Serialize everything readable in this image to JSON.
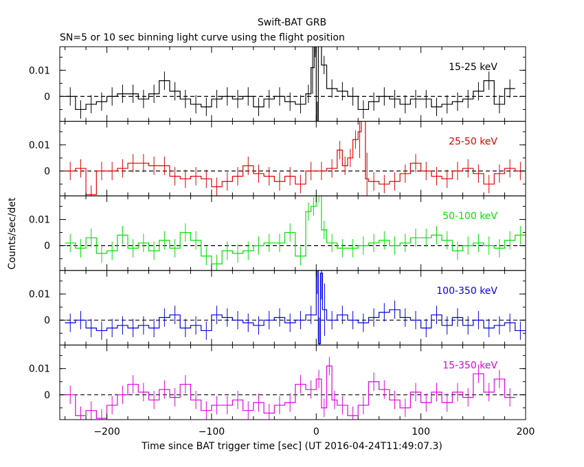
{
  "chart_data": {
    "type": "line",
    "title": "Swift-BAT GRB",
    "subtitle": "SN=5 or 10 sec binning light curve using the flight position",
    "xlabel": "Time since BAT trigger time [sec] (UT 2016-04-24T11:49:07.3)",
    "ylabel": "Counts/sec/det",
    "xlim": [
      -245,
      200
    ],
    "ylim": [
      -0.0095,
      0.019
    ],
    "x_ticks": [
      -200,
      -100,
      0,
      100,
      200
    ],
    "y_ticks": [
      0,
      0.01
    ],
    "y_tick_labels": [
      "0",
      "0.01"
    ],
    "zero_line": "dashed",
    "panels": [
      {
        "name": "15-25 keV",
        "color": "#000000",
        "bins": [
          [
            -240,
            0.0
          ],
          [
            -230,
            -0.005
          ],
          [
            -220,
            -0.003
          ],
          [
            -210,
            -0.002
          ],
          [
            -200,
            0.0
          ],
          [
            -190,
            0.001
          ],
          [
            -180,
            0.001
          ],
          [
            -170,
            -0.001
          ],
          [
            -160,
            0.001
          ],
          [
            -150,
            0.006
          ],
          [
            -140,
            0.002
          ],
          [
            -130,
            -0.001
          ],
          [
            -120,
            -0.003
          ],
          [
            -110,
            -0.004
          ],
          [
            -100,
            -0.001
          ],
          [
            -90,
            0.0
          ],
          [
            -80,
            -0.001
          ],
          [
            -70,
            0.0
          ],
          [
            -60,
            -0.004
          ],
          [
            -50,
            -0.001
          ],
          [
            -40,
            0.0
          ],
          [
            -30,
            -0.002
          ],
          [
            -20,
            -0.003
          ],
          [
            -10,
            0.001
          ],
          [
            -5,
            0.011
          ],
          [
            -2,
            0.025
          ],
          [
            0,
            -0.012
          ],
          [
            2,
            0.03
          ],
          [
            5,
            0.012
          ],
          [
            10,
            0.003
          ],
          [
            20,
            0.002
          ],
          [
            30,
            0.0
          ],
          [
            40,
            -0.005
          ],
          [
            50,
            -0.002
          ],
          [
            60,
            0.0
          ],
          [
            70,
            -0.001
          ],
          [
            80,
            -0.003
          ],
          [
            90,
            -0.001
          ],
          [
            100,
            -0.001
          ],
          [
            110,
            -0.004
          ],
          [
            120,
            -0.003
          ],
          [
            130,
            -0.002
          ],
          [
            140,
            -0.001
          ],
          [
            150,
            0.002
          ],
          [
            160,
            0.006
          ],
          [
            170,
            -0.003
          ],
          [
            180,
            0.003
          ]
        ]
      },
      {
        "name": "25-50 keV",
        "color": "#e00000",
        "bins": [
          [
            -240,
            0.0
          ],
          [
            -230,
            0.001
          ],
          [
            -220,
            -0.009
          ],
          [
            -210,
            0.0
          ],
          [
            -200,
            0.0
          ],
          [
            -190,
            0.001
          ],
          [
            -180,
            0.003
          ],
          [
            -170,
            0.003
          ],
          [
            -160,
            0.002
          ],
          [
            -150,
            0.002
          ],
          [
            -140,
            -0.002
          ],
          [
            -130,
            -0.003
          ],
          [
            -120,
            -0.002
          ],
          [
            -110,
            -0.003
          ],
          [
            -100,
            -0.006
          ],
          [
            -90,
            -0.004
          ],
          [
            -80,
            -0.002
          ],
          [
            -70,
            0.002
          ],
          [
            -60,
            -0.001
          ],
          [
            -50,
            -0.002
          ],
          [
            -40,
            -0.004
          ],
          [
            -30,
            -0.002
          ],
          [
            -20,
            -0.005
          ],
          [
            -10,
            0.0
          ],
          [
            0,
            0.0
          ],
          [
            10,
            0.001
          ],
          [
            20,
            0.008
          ],
          [
            25,
            0.002
          ],
          [
            30,
            0.005
          ],
          [
            35,
            0.012
          ],
          [
            40,
            0.015
          ],
          [
            43,
            0.03
          ],
          [
            47,
            -0.003
          ],
          [
            50,
            -0.004
          ],
          [
            60,
            -0.005
          ],
          [
            70,
            -0.004
          ],
          [
            80,
            -0.001
          ],
          [
            90,
            0.003
          ],
          [
            100,
            0.0
          ],
          [
            110,
            -0.002
          ],
          [
            120,
            -0.003
          ],
          [
            130,
            0.0
          ],
          [
            140,
            0.001
          ],
          [
            150,
            -0.001
          ],
          [
            160,
            -0.005
          ],
          [
            170,
            -0.001
          ],
          [
            180,
            0.001
          ],
          [
            190,
            0.0
          ]
        ]
      },
      {
        "name": "50-100 keV",
        "color": "#00e000",
        "bins": [
          [
            -240,
            0.001
          ],
          [
            -230,
            -0.001
          ],
          [
            -220,
            0.003
          ],
          [
            -210,
            -0.003
          ],
          [
            -200,
            -0.002
          ],
          [
            -190,
            0.004
          ],
          [
            -180,
            -0.001
          ],
          [
            -170,
            0.001
          ],
          [
            -160,
            -0.002
          ],
          [
            -150,
            0.002
          ],
          [
            -140,
            -0.001
          ],
          [
            -130,
            0.005
          ],
          [
            -120,
            0.002
          ],
          [
            -110,
            -0.004
          ],
          [
            -100,
            -0.007
          ],
          [
            -90,
            -0.002
          ],
          [
            -80,
            -0.003
          ],
          [
            -70,
            -0.002
          ],
          [
            -60,
            0.0
          ],
          [
            -50,
            0.001
          ],
          [
            -40,
            0.001
          ],
          [
            -30,
            0.005
          ],
          [
            -20,
            -0.004
          ],
          [
            -10,
            0.013
          ],
          [
            -5,
            0.015
          ],
          [
            0,
            0.02
          ],
          [
            5,
            0.006
          ],
          [
            10,
            0.001
          ],
          [
            20,
            -0.001
          ],
          [
            30,
            -0.001
          ],
          [
            40,
            0.0
          ],
          [
            50,
            0.001
          ],
          [
            60,
            0.002
          ],
          [
            70,
            0.0
          ],
          [
            80,
            0.001
          ],
          [
            90,
            0.003
          ],
          [
            100,
            0.003
          ],
          [
            110,
            0.004
          ],
          [
            120,
            0.002
          ],
          [
            130,
            -0.002
          ],
          [
            140,
            0.0
          ],
          [
            150,
            0.001
          ],
          [
            160,
            0.0
          ],
          [
            170,
            -0.001
          ],
          [
            180,
            0.002
          ],
          [
            190,
            0.004
          ]
        ]
      },
      {
        "name": "100-350 keV",
        "color": "#0000e0",
        "bins": [
          [
            -240,
            -0.001
          ],
          [
            -230,
            0.0
          ],
          [
            -220,
            -0.003
          ],
          [
            -210,
            -0.004
          ],
          [
            -200,
            -0.003
          ],
          [
            -190,
            -0.002
          ],
          [
            -180,
            -0.003
          ],
          [
            -170,
            -0.002
          ],
          [
            -160,
            -0.003
          ],
          [
            -150,
            0.001
          ],
          [
            -140,
            0.002
          ],
          [
            -130,
            -0.003
          ],
          [
            -120,
            -0.002
          ],
          [
            -110,
            -0.004
          ],
          [
            -100,
            0.002
          ],
          [
            -90,
            0.001
          ],
          [
            -80,
            0.0
          ],
          [
            -70,
            -0.001
          ],
          [
            -60,
            -0.002
          ],
          [
            -50,
            0.0
          ],
          [
            -40,
            0.001
          ],
          [
            -30,
            -0.001
          ],
          [
            -20,
            0.0
          ],
          [
            -10,
            0.002
          ],
          [
            0,
            0.02
          ],
          [
            2,
            -0.009
          ],
          [
            4,
            0.018
          ],
          [
            6,
            0.004
          ],
          [
            10,
            0.0
          ],
          [
            20,
            0.002
          ],
          [
            30,
            0.0
          ],
          [
            40,
            -0.001
          ],
          [
            50,
            0.001
          ],
          [
            60,
            0.003
          ],
          [
            70,
            0.004
          ],
          [
            80,
            0.001
          ],
          [
            90,
            0.0
          ],
          [
            100,
            -0.003
          ],
          [
            110,
            0.002
          ],
          [
            120,
            -0.002
          ],
          [
            130,
            0.001
          ],
          [
            140,
            -0.002
          ],
          [
            150,
            0.0
          ],
          [
            160,
            -0.003
          ],
          [
            170,
            -0.002
          ],
          [
            180,
            -0.001
          ],
          [
            190,
            -0.004
          ]
        ]
      },
      {
        "name": "15-350 keV",
        "color": "#e000e0",
        "bins": [
          [
            -240,
            0.0
          ],
          [
            -230,
            -0.008
          ],
          [
            -220,
            -0.006
          ],
          [
            -210,
            -0.009
          ],
          [
            -200,
            -0.004
          ],
          [
            -190,
            0.0
          ],
          [
            -180,
            0.004
          ],
          [
            -170,
            0.001
          ],
          [
            -160,
            -0.002
          ],
          [
            -150,
            0.002
          ],
          [
            -140,
            -0.001
          ],
          [
            -130,
            0.004
          ],
          [
            -120,
            -0.002
          ],
          [
            -110,
            -0.006
          ],
          [
            -100,
            -0.004
          ],
          [
            -90,
            -0.004
          ],
          [
            -80,
            -0.002
          ],
          [
            -70,
            -0.006
          ],
          [
            -60,
            -0.003
          ],
          [
            -50,
            -0.007
          ],
          [
            -40,
            -0.004
          ],
          [
            -30,
            -0.003
          ],
          [
            -20,
            0.004
          ],
          [
            -10,
            0.002
          ],
          [
            0,
            0.006
          ],
          [
            5,
            -0.005
          ],
          [
            10,
            0.011
          ],
          [
            15,
            -0.002
          ],
          [
            20,
            -0.004
          ],
          [
            30,
            -0.008
          ],
          [
            40,
            -0.004
          ],
          [
            50,
            0.005
          ],
          [
            60,
            0.002
          ],
          [
            70,
            -0.002
          ],
          [
            80,
            -0.005
          ],
          [
            90,
            0.001
          ],
          [
            100,
            -0.003
          ],
          [
            110,
            0.001
          ],
          [
            120,
            -0.003
          ],
          [
            130,
            0.001
          ],
          [
            140,
            -0.001
          ],
          [
            150,
            0.008
          ],
          [
            160,
            0.001
          ],
          [
            170,
            0.006
          ],
          [
            180,
            -0.001
          ]
        ]
      }
    ]
  }
}
